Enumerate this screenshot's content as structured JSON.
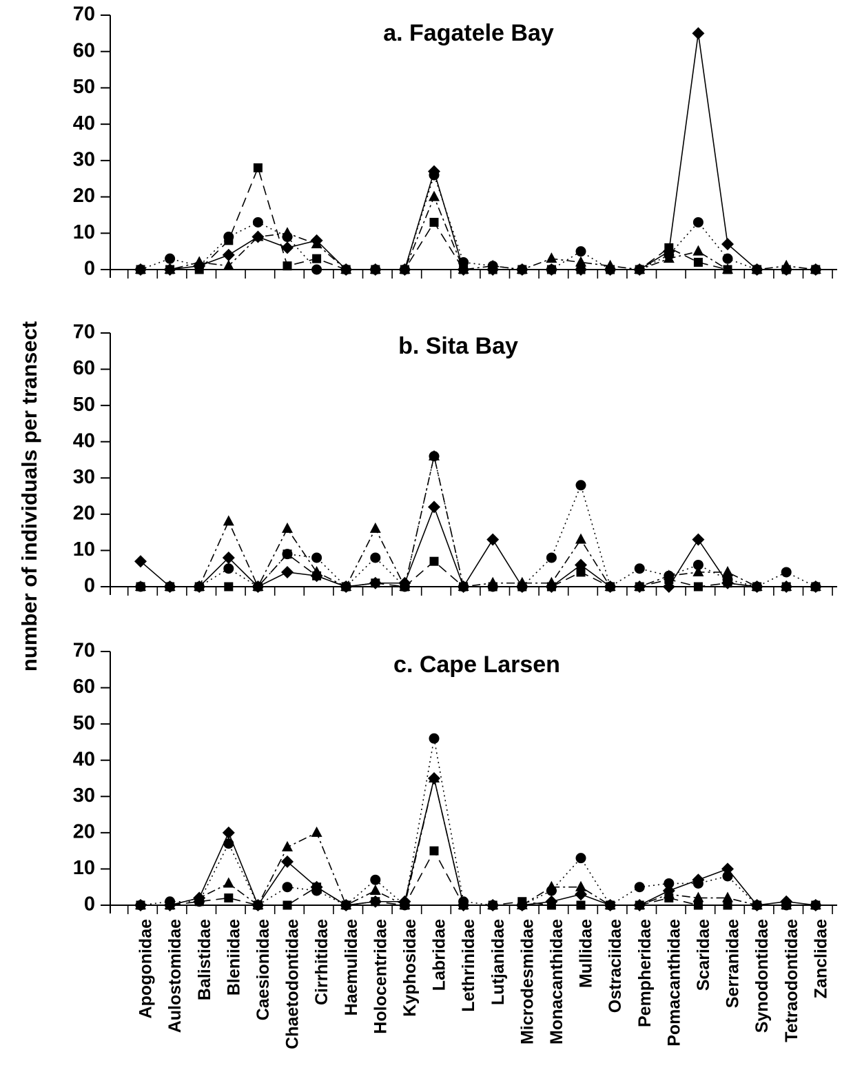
{
  "chart_data": {
    "type": "line",
    "ylabel": "number of individuals per transect",
    "ylim": [
      0,
      70
    ],
    "yticks": [
      "0",
      "10",
      "20",
      "30",
      "40",
      "50",
      "60",
      "70"
    ],
    "categories": [
      "Apogonidae",
      "Aulostomidae",
      "Balistidae",
      "Bleniidae",
      "Caesionidae",
      "Chaetodontidae",
      "Cirrhitidae",
      "Haemulidae",
      "Holocentridae",
      "Kyphosidae",
      "Labridae",
      "Lethrinidae",
      "Lutjanidae",
      "Microdesmidae",
      "Monacanthidae",
      "Mullidae",
      "Ostraciidae",
      "Pempheridae",
      "Pomacanthidae",
      "Scaridae",
      "Serranidae",
      "Synodontidae",
      "Tetraodontidae",
      "Zanclidae"
    ],
    "markers": {
      "diamond": "diamond",
      "square": "square",
      "triangle": "triangle",
      "circle": "circle"
    },
    "panels": [
      {
        "title": "a. Fagatele Bay",
        "series": [
          {
            "marker": "diamond",
            "line": "solid",
            "values": [
              0,
              0,
              1,
              4,
              9,
              6,
              8,
              0,
              0,
              0,
              27,
              0,
              0,
              0,
              0,
              0,
              0,
              0,
              5,
              65,
              7,
              0,
              0,
              0
            ]
          },
          {
            "marker": "square",
            "line": "dashed",
            "values": [
              0,
              0,
              0,
              8,
              28,
              1,
              3,
              0,
              0,
              0,
              13,
              0,
              0,
              0,
              0,
              0,
              0,
              0,
              6,
              2,
              0,
              0,
              0,
              0
            ]
          },
          {
            "marker": "triangle",
            "line": "dashdot",
            "values": [
              0,
              0,
              2,
              1,
              9,
              10,
              7,
              0,
              0,
              0,
              20,
              0,
              1,
              0,
              3,
              2,
              1,
              0,
              3,
              5,
              0,
              0,
              1,
              0
            ]
          },
          {
            "marker": "circle",
            "line": "dotted",
            "values": [
              0,
              3,
              1,
              9,
              13,
              9,
              0,
              0,
              0,
              0,
              26,
              2,
              1,
              0,
              0,
              5,
              0,
              0,
              4,
              13,
              3,
              0,
              0,
              0
            ]
          }
        ]
      },
      {
        "title": "b. Sita Bay",
        "series": [
          {
            "marker": "diamond",
            "line": "solid",
            "values": [
              7,
              0,
              0,
              8,
              0,
              4,
              3,
              0,
              1,
              1,
              22,
              0,
              13,
              0,
              0,
              6,
              0,
              0,
              0,
              13,
              1,
              0,
              0,
              0
            ]
          },
          {
            "marker": "square",
            "line": "dashed",
            "values": [
              0,
              0,
              0,
              0,
              0,
              9,
              3,
              0,
              1,
              0,
              7,
              0,
              0,
              0,
              0,
              4,
              0,
              0,
              2,
              0,
              1,
              0,
              0,
              0
            ]
          },
          {
            "marker": "triangle",
            "line": "dashdot",
            "values": [
              0,
              0,
              0,
              18,
              0,
              16,
              4,
              0,
              16,
              0,
              36,
              0,
              1,
              1,
              1,
              13,
              0,
              0,
              3,
              4,
              4,
              0,
              0,
              0
            ]
          },
          {
            "marker": "circle",
            "line": "dotted",
            "values": [
              0,
              0,
              0,
              5,
              0,
              9,
              8,
              0,
              8,
              0,
              36,
              0,
              0,
              0,
              8,
              28,
              0,
              5,
              3,
              6,
              2,
              0,
              4,
              0
            ]
          }
        ]
      },
      {
        "title": "c. Cape Larsen",
        "series": [
          {
            "marker": "diamond",
            "line": "solid",
            "values": [
              0,
              0,
              2,
              20,
              0,
              12,
              5,
              0,
              1,
              1,
              35,
              0,
              0,
              0,
              1,
              3,
              0,
              0,
              4,
              7,
              10,
              0,
              1,
              0
            ]
          },
          {
            "marker": "square",
            "line": "dashed",
            "values": [
              0,
              0,
              1,
              2,
              0,
              0,
              5,
              0,
              1,
              0,
              15,
              0,
              0,
              1,
              0,
              0,
              0,
              0,
              2,
              0,
              0,
              0,
              0,
              0
            ]
          },
          {
            "marker": "triangle",
            "line": "dashdot",
            "values": [
              0,
              0,
              2,
              6,
              0,
              16,
              20,
              0,
              4,
              0,
              35,
              0,
              0,
              0,
              5,
              5,
              0,
              0,
              3,
              2,
              2,
              0,
              0,
              0
            ]
          },
          {
            "marker": "circle",
            "line": "dotted",
            "values": [
              0,
              1,
              1,
              17,
              0,
              5,
              4,
              0,
              7,
              0,
              46,
              1,
              0,
              0,
              4,
              13,
              0,
              5,
              6,
              6,
              8,
              0,
              0,
              0
            ]
          }
        ]
      }
    ]
  }
}
